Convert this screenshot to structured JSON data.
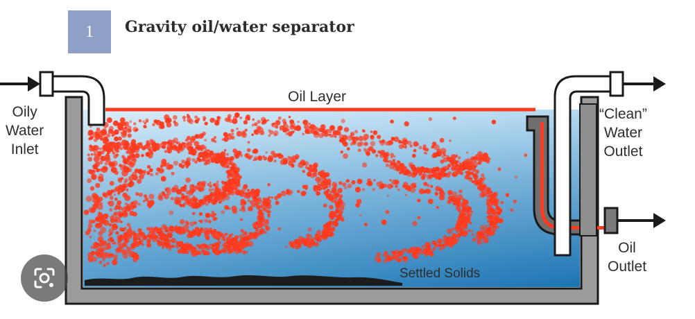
{
  "figure": {
    "number": "1",
    "title": "Gravity oil/water separator"
  },
  "labels": {
    "inlet": [
      "Oily",
      "Water",
      "Inlet"
    ],
    "oil_layer": "Oil Layer",
    "clean_outlet": [
      "“Clean”",
      "Water",
      "Outlet"
    ],
    "oil_outlet": [
      "Oil",
      "Outlet"
    ],
    "settled_solids": "Settled Solids"
  },
  "colors": {
    "oil": "#ff3b1f",
    "water_light": "#c9e6f7",
    "water_dark": "#1f7dbd",
    "tank_wall": "#9a9a9a",
    "outline": "#1a1a1a",
    "badge": "#8fa0c7"
  },
  "icons": {
    "lens_button": "visual-search-lens-icon"
  }
}
